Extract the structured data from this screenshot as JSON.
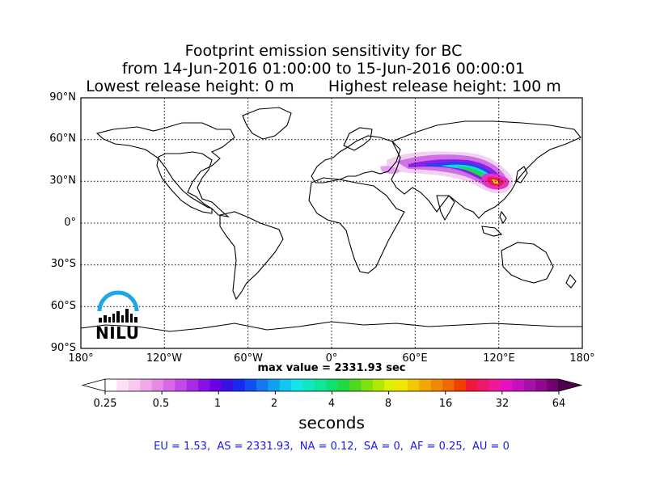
{
  "title": {
    "line1": "Footprint emission sensitivity for BC",
    "line2": "from 14-Jun-2016 01:00:00 to 15-Jun-2016 00:00:01",
    "line3": "Lowest release height: 0 m       Highest release height: 100 m"
  },
  "axes": {
    "lat_labels": [
      "90°N",
      "60°N",
      "30°N",
      "0°",
      "30°S",
      "60°S",
      "90°S"
    ],
    "lon_labels": [
      "180°",
      "120°W",
      "60°W",
      "0°",
      "60°E",
      "120°E",
      "180°"
    ]
  },
  "max_value_text": "max value = 2331.93 sec",
  "colorbar": {
    "ticks": [
      "0.25",
      "0.5",
      "1",
      "2",
      "4",
      "8",
      "16",
      "32",
      "64"
    ],
    "unit": "seconds",
    "colors": [
      "#ffffff",
      "#fde0f5",
      "#f8c8f0",
      "#f0aaea",
      "#e68ae6",
      "#d868e6",
      "#c24ae6",
      "#aa2ae6",
      "#8a10e6",
      "#6a00e6",
      "#3a10e8",
      "#1a28f0",
      "#1050f0",
      "#1478f0",
      "#10a0f0",
      "#10c8f0",
      "#10e6e6",
      "#10e6c0",
      "#10e69a",
      "#10e070",
      "#20d840",
      "#50d820",
      "#80e010",
      "#b0e800",
      "#dcf000",
      "#f0e600",
      "#f0c800",
      "#f0a800",
      "#f08800",
      "#f06800",
      "#f04000",
      "#f01838",
      "#f01868",
      "#f01898",
      "#e610c0",
      "#c810c0",
      "#a810a8",
      "#900890",
      "#700070"
    ]
  },
  "regions_text": "EU = 1.53,  AS = 2331.93,  NA = 0.12,  SA = 0,  AF = 0.25,  AU = 0",
  "logo": {
    "text": "NILU",
    "color": "#1aa8e6"
  }
}
